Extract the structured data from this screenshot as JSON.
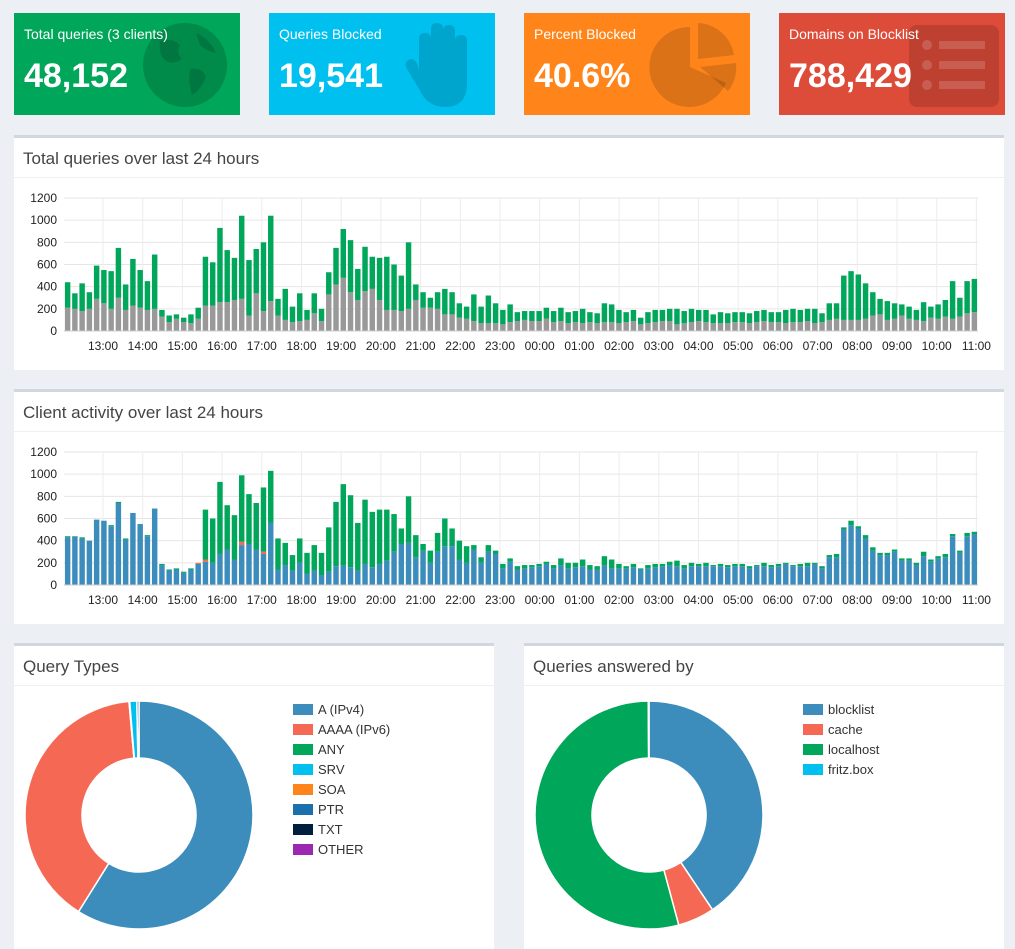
{
  "tiles": [
    {
      "label": "Total queries (3 clients)",
      "value": "48,152",
      "color": "#00a65a",
      "icon": "globe-icon"
    },
    {
      "label": "Queries Blocked",
      "value": "19,541",
      "color": "#00c0ef",
      "icon": "hand-icon"
    },
    {
      "label": "Percent Blocked",
      "value": "40.6%",
      "color": "#ff851b",
      "icon": "pie-chart-icon"
    },
    {
      "label": "Domains on Blocklist",
      "value": "788,429",
      "color": "#dd4b39",
      "icon": "list-icon"
    }
  ],
  "panels": {
    "queries_title": "Total queries over last 24 hours",
    "clients_title": "Client activity over last 24 hours",
    "types_title": "Query Types",
    "answered_title": "Queries answered by"
  },
  "chart_data": [
    {
      "type": "bar",
      "stacked": true,
      "title": "Total queries over last 24 hours",
      "x_ticks": [
        "13:00",
        "14:00",
        "15:00",
        "16:00",
        "17:00",
        "18:00",
        "19:00",
        "20:00",
        "21:00",
        "22:00",
        "23:00",
        "00:00",
        "01:00",
        "02:00",
        "03:00",
        "04:00",
        "05:00",
        "06:00",
        "07:00",
        "08:00",
        "09:00",
        "10:00",
        "11:00"
      ],
      "y_ticks": [
        0,
        200,
        400,
        600,
        800,
        1000,
        1200
      ],
      "ylim": [
        0,
        1200
      ],
      "grid": true,
      "series": [
        {
          "color": "#999999",
          "values": [
            210,
            200,
            180,
            200,
            290,
            250,
            200,
            300,
            190,
            230,
            210,
            190,
            200,
            130,
            80,
            110,
            80,
            70,
            110,
            230,
            230,
            260,
            260,
            280,
            290,
            140,
            340,
            180,
            270,
            140,
            100,
            80,
            90,
            100,
            160,
            90,
            330,
            420,
            480,
            350,
            280,
            360,
            380,
            280,
            190,
            190,
            180,
            200,
            280,
            210,
            210,
            200,
            150,
            150,
            120,
            110,
            90,
            70,
            70,
            70,
            60,
            80,
            90,
            100,
            90,
            90,
            110,
            80,
            90,
            70,
            80,
            70,
            80,
            70,
            80,
            80,
            70,
            80,
            90,
            60,
            70,
            80,
            90,
            90,
            60,
            70,
            80,
            90,
            80,
            70,
            70,
            70,
            80,
            80,
            70,
            80,
            90,
            80,
            80,
            70,
            80,
            80,
            90,
            70,
            80,
            100,
            110,
            100,
            100,
            100,
            110,
            140,
            150,
            100,
            110,
            140,
            110,
            100,
            90,
            120,
            110,
            130,
            110,
            130,
            160,
            170
          ]
        },
        {
          "color": "#00a65a",
          "values": [
            230,
            140,
            250,
            150,
            300,
            300,
            340,
            450,
            230,
            420,
            340,
            260,
            490,
            60,
            60,
            40,
            40,
            80,
            100,
            440,
            390,
            670,
            470,
            380,
            750,
            500,
            400,
            620,
            770,
            150,
            280,
            140,
            250,
            90,
            180,
            110,
            200,
            330,
            440,
            470,
            280,
            400,
            290,
            380,
            480,
            410,
            320,
            600,
            140,
            140,
            90,
            150,
            230,
            200,
            130,
            110,
            240,
            150,
            250,
            180,
            130,
            160,
            80,
            80,
            90,
            90,
            100,
            100,
            120,
            100,
            100,
            130,
            90,
            90,
            170,
            160,
            120,
            90,
            100,
            60,
            100,
            110,
            100,
            110,
            140,
            110,
            120,
            100,
            110,
            80,
            100,
            90,
            90,
            90,
            90,
            100,
            100,
            90,
            90,
            120,
            120,
            110,
            110,
            130,
            80,
            150,
            140,
            400,
            440,
            410,
            320,
            210,
            140,
            170,
            140,
            100,
            110,
            90,
            170,
            100,
            130,
            150,
            340,
            170,
            290,
            300
          ]
        }
      ]
    },
    {
      "type": "bar",
      "stacked": true,
      "title": "Client activity over last 24 hours",
      "x_ticks": [
        "13:00",
        "14:00",
        "15:00",
        "16:00",
        "17:00",
        "18:00",
        "19:00",
        "20:00",
        "21:00",
        "22:00",
        "23:00",
        "00:00",
        "01:00",
        "02:00",
        "03:00",
        "04:00",
        "05:00",
        "06:00",
        "07:00",
        "08:00",
        "09:00",
        "10:00",
        "11:00"
      ],
      "y_ticks": [
        0,
        200,
        400,
        600,
        800,
        1000,
        1200
      ],
      "ylim": [
        0,
        1200
      ],
      "grid": true,
      "series": [
        {
          "color": "#3c8dbc",
          "values": [
            430,
            440,
            420,
            400,
            590,
            580,
            530,
            740,
            410,
            650,
            550,
            440,
            690,
            180,
            130,
            140,
            110,
            140,
            190,
            210,
            200,
            280,
            320,
            230,
            360,
            370,
            320,
            280,
            560,
            140,
            180,
            130,
            200,
            100,
            130,
            90,
            120,
            170,
            180,
            160,
            130,
            190,
            160,
            190,
            220,
            300,
            370,
            380,
            250,
            310,
            200,
            300,
            350,
            350,
            230,
            200,
            320,
            200,
            300,
            280,
            150,
            210,
            140,
            150,
            160,
            170,
            190,
            150,
            180,
            150,
            160,
            170,
            140,
            140,
            180,
            150,
            150,
            150,
            160,
            140,
            150,
            160,
            170,
            180,
            170,
            150,
            170,
            170,
            170,
            170,
            170,
            160,
            170,
            170,
            150,
            170,
            170,
            160,
            170,
            190,
            170,
            170,
            170,
            190,
            150,
            250,
            250,
            500,
            540,
            510,
            420,
            310,
            270,
            270,
            300,
            220,
            220,
            180,
            260,
            210,
            240,
            250,
            440,
            290,
            440,
            460
          ]
        },
        {
          "color": "#f56954",
          "values": [
            0,
            0,
            0,
            0,
            0,
            0,
            0,
            0,
            0,
            0,
            0,
            0,
            0,
            0,
            0,
            0,
            0,
            0,
            10,
            20,
            0,
            0,
            0,
            0,
            30,
            0,
            0,
            20,
            0,
            0,
            0,
            0,
            0,
            0,
            0,
            0,
            0,
            0,
            0,
            0,
            0,
            0,
            0,
            0,
            0,
            0,
            0,
            0,
            0,
            0,
            0,
            0,
            0,
            0,
            0,
            0,
            0,
            0,
            0,
            0,
            0,
            0,
            0,
            0,
            0,
            0,
            0,
            0,
            0,
            0,
            0,
            0,
            0,
            0,
            0,
            0,
            0,
            0,
            0,
            0,
            0,
            0,
            0,
            0,
            0,
            0,
            0,
            0,
            0,
            0,
            0,
            0,
            0,
            0,
            0,
            0,
            0,
            0,
            0,
            0,
            0,
            0,
            0,
            0,
            0,
            0,
            0,
            0,
            0,
            0,
            0,
            0,
            0,
            0,
            0,
            0,
            0,
            0,
            0,
            0,
            0,
            0,
            0,
            0,
            0,
            0,
            0,
            0
          ]
        },
        {
          "color": "#00a65a",
          "values": [
            10,
            0,
            10,
            0,
            0,
            0,
            10,
            10,
            10,
            0,
            0,
            10,
            0,
            10,
            10,
            10,
            10,
            10,
            0,
            450,
            400,
            650,
            400,
            400,
            600,
            450,
            420,
            580,
            470,
            280,
            200,
            140,
            220,
            190,
            230,
            200,
            400,
            580,
            730,
            650,
            430,
            580,
            500,
            490,
            460,
            340,
            140,
            420,
            200,
            60,
            110,
            170,
            250,
            160,
            170,
            150,
            40,
            50,
            60,
            30,
            40,
            30,
            30,
            30,
            20,
            20,
            20,
            30,
            60,
            50,
            40,
            60,
            40,
            30,
            80,
            80,
            40,
            20,
            30,
            10,
            30,
            30,
            20,
            30,
            50,
            30,
            30,
            20,
            30,
            10,
            20,
            20,
            20,
            20,
            20,
            10,
            30,
            20,
            20,
            10,
            10,
            20,
            30,
            10,
            20,
            20,
            30,
            20,
            40,
            20,
            30,
            30,
            20,
            20,
            20,
            20,
            20,
            20,
            40,
            20,
            20,
            30,
            20,
            20,
            30,
            20
          ]
        }
      ]
    },
    {
      "type": "pie",
      "donut": true,
      "title": "Query Types",
      "labels": [
        "A (IPv4)",
        "AAAA (IPv6)",
        "ANY",
        "SRV",
        "SOA",
        "PTR",
        "TXT",
        "OTHER"
      ],
      "values": [
        58.9,
        39.7,
        0.1,
        1.0,
        0.0,
        0.3,
        0.0,
        0.0
      ],
      "colors": [
        "#3c8dbc",
        "#f56954",
        "#00a65a",
        "#00c0ef",
        "#ff851b",
        "#1a6fad",
        "#001f3f",
        "#9c27b0"
      ],
      "legend_position": "right"
    },
    {
      "type": "pie",
      "donut": true,
      "title": "Queries answered by",
      "labels": [
        "blocklist",
        "cache",
        "localhost",
        "fritz.box"
      ],
      "values": [
        40.6,
        5.2,
        54.1,
        0.1
      ],
      "colors": [
        "#3c8dbc",
        "#f56954",
        "#00a65a",
        "#00c0ef"
      ],
      "legend_position": "right"
    }
  ]
}
